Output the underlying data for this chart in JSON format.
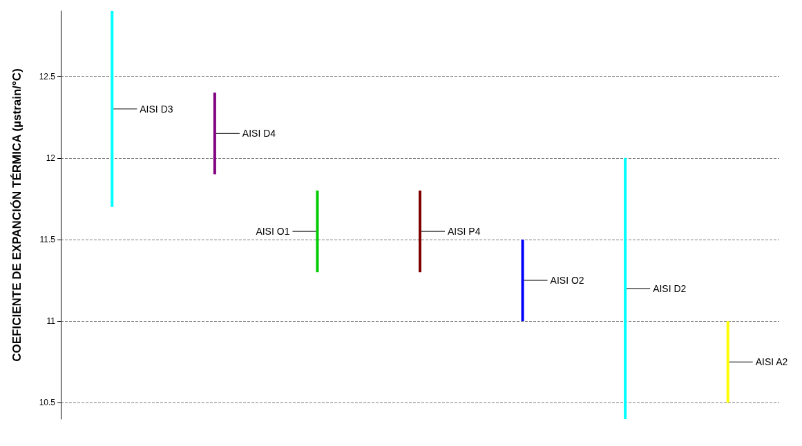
{
  "chart_data": {
    "type": "bar",
    "ylabel": "COEFICIENTE DE EXPANCIÓN TÉRMICA (µstrain/°C)",
    "categories": [
      null,
      null,
      null,
      null,
      null,
      null,
      null
    ],
    "series": [
      {
        "name": "AISI D3",
        "color": "#00ffff",
        "values": [
          1.2,
          null,
          null,
          null,
          null,
          null,
          null
        ],
        "base": [
          11.7,
          null,
          null,
          null,
          null,
          null,
          null
        ]
      },
      {
        "name": "AISI D4",
        "color": "#800080",
        "values": [
          null,
          0.5,
          null,
          null,
          null,
          null,
          null
        ],
        "base": [
          null,
          11.9,
          null,
          null,
          null,
          null,
          null
        ]
      },
      {
        "name": "AISI O1",
        "color": "#00cc00",
        "values": [
          null,
          null,
          0.5,
          null,
          null,
          null,
          null
        ],
        "base": [
          null,
          null,
          11.3,
          null,
          null,
          null,
          null
        ]
      },
      {
        "name": "AISI P4",
        "color": "#800000",
        "values": [
          null,
          null,
          null,
          0.5,
          null,
          null,
          null
        ],
        "base": [
          null,
          null,
          null,
          11.3,
          null,
          null,
          null
        ]
      },
      {
        "name": "AISI O2",
        "color": "#0000ff",
        "values": [
          null,
          null,
          null,
          null,
          0.5,
          null,
          null
        ],
        "base": [
          null,
          null,
          null,
          null,
          11.0,
          null,
          null
        ]
      },
      {
        "name": "AISI D2",
        "color": "#00ffff",
        "values": [
          null,
          null,
          null,
          null,
          null,
          1.6,
          null
        ],
        "base": [
          null,
          null,
          null,
          null,
          null,
          10.4,
          null
        ]
      },
      {
        "name": "AISI A2",
        "color": "#ffff00",
        "values": [
          null,
          null,
          null,
          null,
          null,
          null,
          0.5
        ],
        "base": [
          null,
          null,
          null,
          null,
          null,
          null,
          10.5
        ]
      }
    ],
    "ylim": [
      10.4,
      12.9
    ],
    "yticks": [
      10.5,
      11,
      11.5,
      12,
      12.5
    ],
    "grid": "y",
    "tick_labels": "y"
  }
}
